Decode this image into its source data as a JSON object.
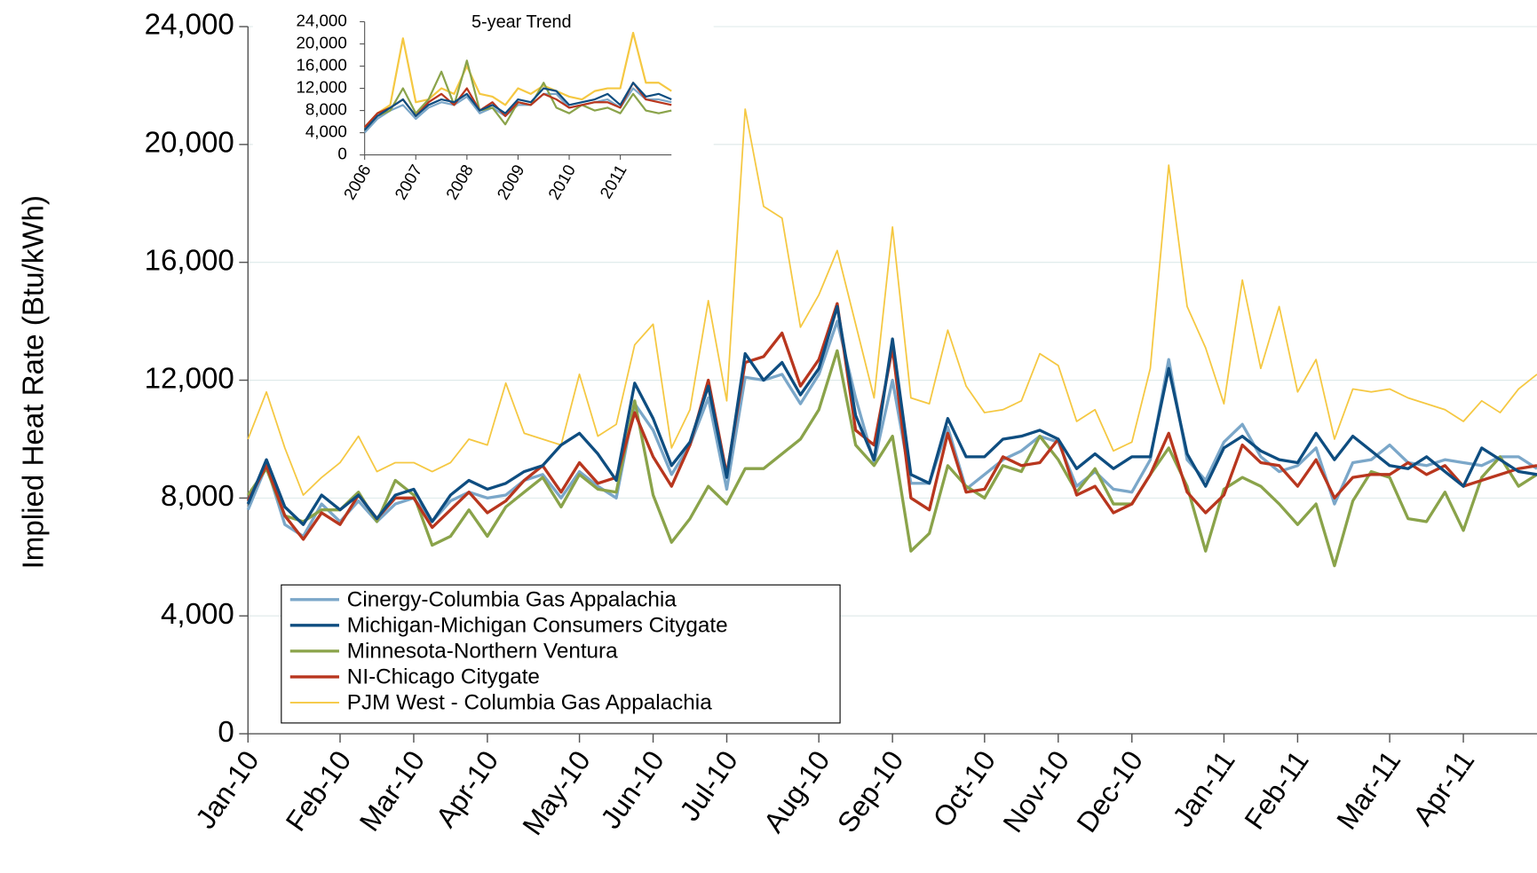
{
  "chart_data": [
    {
      "type": "line",
      "y_label": "Implied Heat Rate (Btu/kWh)",
      "categories": [
        "Jan-10",
        null,
        null,
        null,
        null,
        "Feb-10",
        null,
        null,
        null,
        "Mar-10",
        null,
        null,
        null,
        "Apr-10",
        null,
        null,
        null,
        null,
        "May-10",
        null,
        null,
        null,
        "Jun-10",
        null,
        null,
        null,
        "Jul-10",
        null,
        null,
        null,
        null,
        "Aug-10",
        null,
        null,
        null,
        "Sep-10",
        null,
        null,
        null,
        null,
        "Oct-10",
        null,
        null,
        null,
        "Nov-10",
        null,
        null,
        null,
        "Dec-10",
        null,
        null,
        null,
        null,
        "Jan-11",
        null,
        null,
        null,
        "Feb-11",
        null,
        null,
        null,
        null,
        "Mar-11",
        null,
        null,
        null,
        "Apr-11",
        null,
        null,
        null,
        null
      ],
      "series": [
        {
          "name": "Cinergy-Columbia Gas Appalachia",
          "color": "#7ba7c9",
          "values": [
            7600,
            9100,
            7100,
            6700,
            7800,
            7200,
            7900,
            7200,
            7800,
            8000,
            7200,
            7900,
            8200,
            8000,
            8100,
            8600,
            8800,
            8000,
            8900,
            8400,
            8000,
            11200,
            10300,
            8800,
            9800,
            11400,
            8300,
            12100,
            12000,
            12200,
            11200,
            12200,
            14000,
            11400,
            9200,
            12000,
            8500,
            8500,
            10400,
            8300,
            8800,
            9300,
            9600,
            10100,
            9900,
            8400,
            8900,
            8300,
            8200,
            9300,
            12700,
            9300,
            8600,
            9900,
            10500,
            9400,
            8900,
            9100,
            9700,
            7800,
            9200,
            9300,
            9800,
            9200,
            9100,
            9300,
            9200,
            9100,
            9400,
            9400,
            9000
          ]
        },
        {
          "name": "Michigan-Michigan Consumers Citygate",
          "color": "#0e4d80",
          "values": [
            7800,
            9300,
            7700,
            7100,
            8100,
            7600,
            8100,
            7300,
            8100,
            8300,
            7200,
            8100,
            8600,
            8300,
            8500,
            8900,
            9100,
            9800,
            10200,
            9500,
            8600,
            11900,
            10700,
            9100,
            9900,
            11800,
            8700,
            12900,
            12000,
            12600,
            11500,
            12400,
            14500,
            10800,
            9300,
            13400,
            8800,
            8500,
            10700,
            9400,
            9400,
            10000,
            10100,
            10300,
            10000,
            9000,
            9500,
            9000,
            9400,
            9400,
            12400,
            9500,
            8400,
            9700,
            10100,
            9600,
            9300,
            9200,
            10200,
            9300,
            10100,
            9600,
            9100,
            9000,
            9400,
            8900,
            8400,
            9700,
            9300,
            8900,
            8800
          ]
        },
        {
          "name": "Minnesota-Northern Ventura",
          "color": "#8aa34a",
          "values": [
            8100,
            9000,
            7400,
            7200,
            7600,
            7600,
            8200,
            7200,
            8600,
            8100,
            6400,
            6700,
            7600,
            6700,
            7700,
            8200,
            8700,
            7700,
            8800,
            8300,
            8200,
            11300,
            8100,
            6500,
            7300,
            8400,
            7800,
            9000,
            9000,
            9500,
            10000,
            11000,
            13000,
            9800,
            9100,
            10100,
            6200,
            6800,
            9100,
            8400,
            8000,
            9100,
            8900,
            10100,
            9300,
            8200,
            9000,
            7800,
            7800,
            8800,
            9700,
            8400,
            6200,
            8300,
            8700,
            8400,
            7800,
            7100,
            7800,
            5700,
            7900,
            8900,
            8700,
            7300,
            7200,
            8200,
            6900,
            8700,
            9400,
            8400,
            8800
          ]
        },
        {
          "name": "NI-Chicago Citygate",
          "color": "#b8361e",
          "values": [
            7900,
            9100,
            7400,
            6600,
            7500,
            7100,
            8100,
            7300,
            8000,
            8000,
            7000,
            7600,
            8200,
            7500,
            7900,
            8600,
            9100,
            8200,
            9200,
            8500,
            8700,
            10900,
            9400,
            8400,
            9800,
            12000,
            8800,
            12600,
            12800,
            13600,
            11800,
            12700,
            14600,
            10300,
            9800,
            13100,
            8000,
            7600,
            10200,
            8200,
            8300,
            9400,
            9100,
            9200,
            10000,
            8100,
            8400,
            7500,
            7800,
            8800,
            10200,
            8200,
            7500,
            8100,
            9800,
            9200,
            9100,
            8400,
            9300,
            8000,
            8700,
            8800,
            8800,
            9200,
            8800,
            9100,
            8400,
            8600,
            8800,
            9000,
            9100
          ]
        },
        {
          "name": "PJM West - Columbia Gas Appalachia",
          "color": "#f5c842",
          "values": [
            10000,
            11600,
            9700,
            8100,
            8700,
            9200,
            10100,
            8900,
            9200,
            9200,
            8900,
            9200,
            10000,
            9800,
            11900,
            10200,
            10000,
            9800,
            12200,
            10100,
            10500,
            13200,
            13900,
            9700,
            11000,
            14700,
            11300,
            21200,
            17900,
            17500,
            13800,
            14900,
            16400,
            13900,
            11400,
            17200,
            11400,
            11200,
            13700,
            11800,
            10900,
            11000,
            11300,
            12900,
            12500,
            10600,
            11000,
            9600,
            9900,
            12400,
            19300,
            14500,
            13100,
            11200,
            15400,
            12400,
            14500,
            11600,
            12700,
            10000,
            11700,
            11600,
            11700,
            11400,
            11200,
            11000,
            10600,
            11300,
            10900,
            11700,
            12200
          ]
        }
      ],
      "ylim": [
        0,
        24000
      ],
      "yticks": [
        0,
        {
          "value": 4000,
          "label": "4,000"
        },
        {
          "value": 8000,
          "label": "8,000"
        },
        {
          "value": 12000,
          "label": "12,000"
        },
        {
          "value": 16000,
          "label": "16,000"
        },
        {
          "value": 20000,
          "label": "20,000"
        },
        {
          "value": 24000,
          "label": "24,000"
        }
      ],
      "grid": true,
      "legend": "lower left"
    },
    {
      "type": "line",
      "title": "5-year Trend",
      "x": [
        2006,
        2006.25,
        2006.5,
        2006.75,
        2007,
        2007.25,
        2007.5,
        2007.75,
        2008,
        2008.25,
        2008.5,
        2008.75,
        2009,
        2009.25,
        2009.5,
        2009.75,
        2010,
        2010.25,
        2010.5,
        2010.75,
        2011,
        2011.25,
        2011.5,
        2011.75,
        2012
      ],
      "series": [
        {
          "name": "Cinergy-Columbia Gas Appalachia",
          "color": "#7ba7c9",
          "values": [
            4000,
            6500,
            8000,
            9000,
            6500,
            8500,
            9500,
            9000,
            10500,
            7500,
            8500,
            7000,
            9000,
            9000,
            11000,
            11000,
            8500,
            9000,
            9500,
            10000,
            8500,
            12000,
            10000,
            10000,
            9500
          ]
        },
        {
          "name": "Michigan-Michigan Consumers Citygate",
          "color": "#0e4d80",
          "values": [
            4500,
            7000,
            8500,
            10000,
            7000,
            9000,
            10000,
            9500,
            11000,
            8000,
            9000,
            7500,
            10000,
            9500,
            12000,
            11500,
            9000,
            9500,
            10000,
            11000,
            9000,
            13000,
            10500,
            11000,
            10000
          ]
        },
        {
          "name": "Minnesota-Northern Ventura",
          "color": "#8aa34a",
          "values": [
            4500,
            7000,
            8000,
            12000,
            7500,
            10000,
            15000,
            9000,
            17000,
            8000,
            8500,
            5500,
            9500,
            9000,
            13000,
            8500,
            7500,
            9000,
            8000,
            8500,
            7500,
            11000,
            8000,
            7500,
            8000
          ]
        },
        {
          "name": "NI-Chicago Citygate",
          "color": "#b8361e",
          "values": [
            5000,
            7500,
            8500,
            10000,
            7000,
            9500,
            11000,
            9000,
            12000,
            8000,
            9500,
            7000,
            9500,
            9000,
            11000,
            10000,
            8500,
            9000,
            9500,
            9500,
            8500,
            13000,
            10000,
            9500,
            9000
          ]
        },
        {
          "name": "PJM West - Columbia Gas Appalachia",
          "color": "#f5c842",
          "values": [
            5000,
            7500,
            9000,
            21000,
            9500,
            10000,
            12000,
            11000,
            16000,
            11000,
            10500,
            9000,
            12000,
            11000,
            12500,
            11500,
            10500,
            10000,
            11500,
            12000,
            12000,
            22000,
            13000,
            13000,
            11500
          ]
        }
      ],
      "xlim": [
        2006,
        2012
      ],
      "xticks": [
        2006,
        2007,
        2008,
        2009,
        2010,
        2011
      ],
      "ylim": [
        0,
        24000
      ],
      "yticks": [
        0,
        {
          "value": 4000,
          "label": "4,000"
        },
        {
          "value": 8000,
          "label": "8,000"
        },
        {
          "value": 12000,
          "label": "12,000"
        },
        {
          "value": 16000,
          "label": "16,000"
        },
        {
          "value": 20000,
          "label": "20,000"
        },
        {
          "value": 24000,
          "label": "24,000"
        }
      ]
    }
  ]
}
